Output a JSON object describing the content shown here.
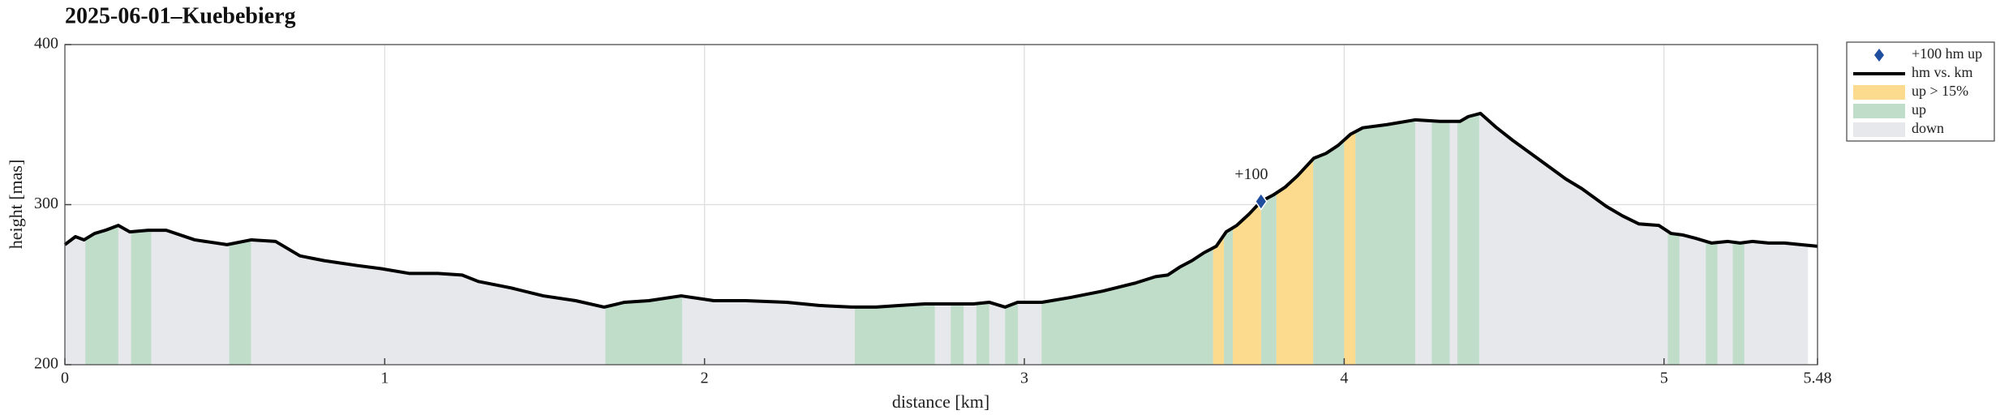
{
  "chart_data": {
    "type": "area",
    "title": "2025-06-01–Kuebebierg",
    "xlabel": "distance [km]",
    "ylabel": "height [mas]",
    "xlim": [
      0,
      5.48
    ],
    "ylim": [
      200,
      400
    ],
    "xticks": [
      0,
      1,
      2,
      3,
      4,
      5,
      5.48
    ],
    "yticks": [
      200,
      300,
      400
    ],
    "grid": true,
    "legend": "outside-right",
    "marker": {
      "name": "+100 hm up",
      "label": "+100",
      "color": "#1f4e9e",
      "x": 3.74,
      "value": 302
    },
    "series": [
      {
        "name": "hm vs. km",
        "color": "#000000",
        "x": [
          0,
          0.033,
          0.06,
          0.093,
          0.127,
          0.167,
          0.203,
          0.26,
          0.317,
          0.406,
          0.507,
          0.583,
          0.659,
          0.735,
          0.811,
          0.913,
          0.989,
          1.078,
          1.166,
          1.242,
          1.293,
          1.394,
          1.496,
          1.597,
          1.686,
          1.75,
          1.826,
          1.927,
          2.029,
          2.13,
          2.257,
          2.358,
          2.46,
          2.536,
          2.612,
          2.688,
          2.738,
          2.789,
          2.84,
          2.89,
          2.94,
          2.979,
          3.055,
          3.144,
          3.245,
          3.347,
          3.41,
          3.448,
          3.486,
          3.524,
          3.562,
          3.6,
          3.631,
          3.664,
          3.702,
          3.74,
          3.778,
          3.816,
          3.854,
          3.905,
          3.943,
          3.981,
          4.02,
          4.058,
          4.134,
          4.223,
          4.299,
          4.362,
          4.388,
          4.426,
          4.477,
          4.528,
          4.604,
          4.693,
          4.743,
          4.819,
          4.87,
          4.921,
          4.984,
          5.022,
          5.06,
          5.098,
          5.149,
          5.2,
          5.238,
          5.276,
          5.327,
          5.377,
          5.428,
          5.48
        ],
        "values": [
          275,
          280,
          278,
          282,
          284,
          287,
          283,
          284,
          284,
          278,
          275,
          278,
          277,
          268,
          265,
          262,
          260,
          257,
          257,
          256,
          252,
          248,
          243,
          240,
          236,
          239,
          240,
          243,
          240,
          240,
          239,
          237,
          236,
          236,
          237,
          238,
          238,
          238,
          238,
          239,
          236,
          239,
          239,
          242,
          246,
          251,
          255,
          256,
          261,
          265,
          270,
          274,
          283,
          287,
          294,
          302,
          306,
          311,
          318,
          329,
          332,
          337,
          344,
          348,
          350,
          353,
          352,
          352,
          355,
          357,
          348,
          340,
          329,
          316,
          310,
          299,
          293,
          288,
          287,
          282,
          281,
          279,
          276,
          277,
          276,
          277,
          276,
          276,
          275,
          274
        ]
      }
    ],
    "bands": [
      {
        "name": "up > 15%",
        "color": "#fddb8e",
        "ranges": [
          [
            3.59,
            3.624
          ],
          [
            3.652,
            3.74
          ],
          [
            3.788,
            3.903
          ],
          [
            4.0,
            4.035
          ]
        ]
      },
      {
        "name": "up",
        "color": "#c0ddca",
        "ranges": [
          [
            0.064,
            0.167
          ],
          [
            0.207,
            0.27
          ],
          [
            0.514,
            0.582
          ],
          [
            1.69,
            1.93
          ],
          [
            2.47,
            2.72
          ],
          [
            2.77,
            2.81
          ],
          [
            2.85,
            2.89
          ],
          [
            2.94,
            2.98
          ],
          [
            3.054,
            3.59
          ],
          [
            3.624,
            3.652
          ],
          [
            3.74,
            3.788
          ],
          [
            3.903,
            4.0
          ],
          [
            4.035,
            4.222
          ],
          [
            4.274,
            4.33
          ],
          [
            4.354,
            4.422
          ],
          [
            5.012,
            5.048
          ],
          [
            5.131,
            5.167
          ],
          [
            5.215,
            5.251
          ]
        ]
      },
      {
        "name": "down",
        "color": "#e7e8ec",
        "ranges": [
          [
            0,
            5.45
          ]
        ]
      }
    ]
  }
}
